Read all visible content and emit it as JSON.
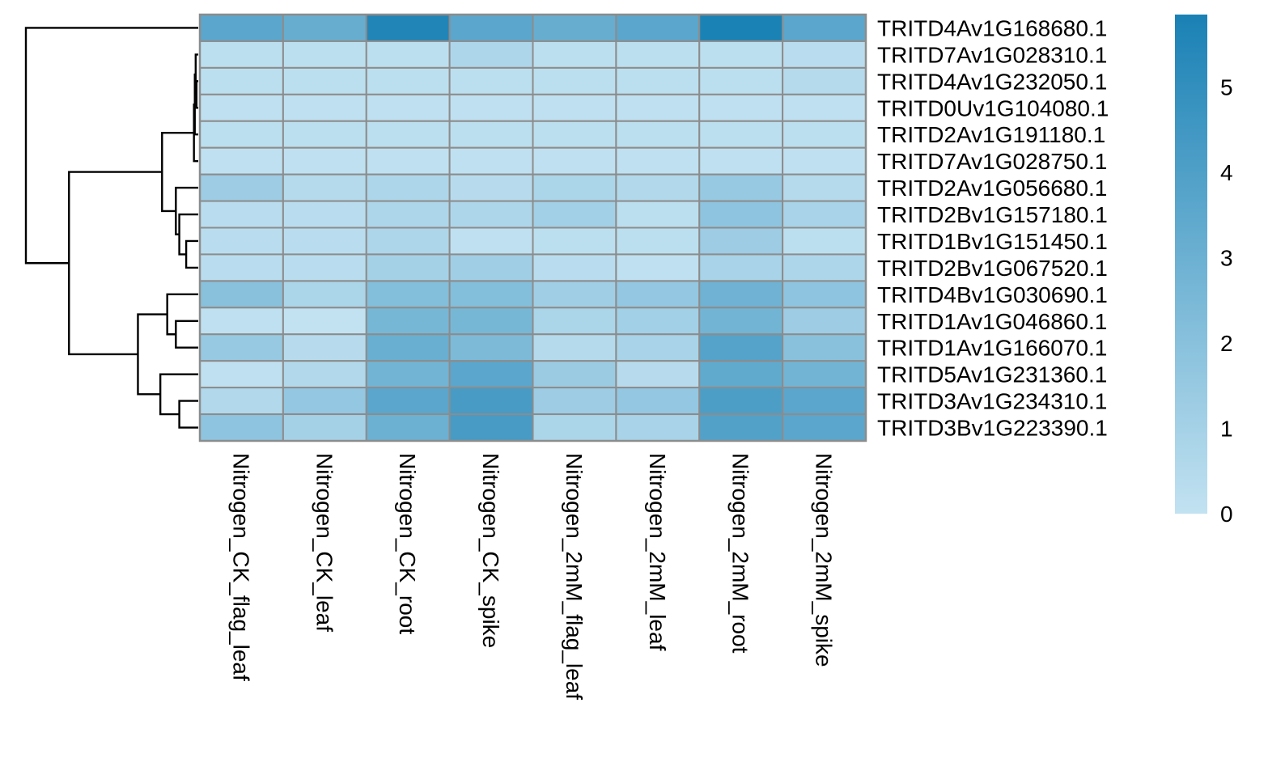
{
  "chart_data": {
    "type": "heatmap",
    "title": "",
    "columns": [
      "Nitrogen_CK_flag_leaf",
      "Nitrogen_CK_leaf",
      "Nitrogen_CK_root",
      "Nitrogen_CK_spike",
      "Nitrogen_2mM_flag_leaf",
      "Nitrogen_2mM_leaf",
      "Nitrogen_2mM_root",
      "Nitrogen_2mM_spike"
    ],
    "rows": [
      "TRITD4Av1G168680.1",
      "TRITD7Av1G028310.1",
      "TRITD4Av1G232050.1",
      "TRITD0Uv1G104080.1",
      "TRITD2Av1G191180.1",
      "TRITD7Av1G028750.1",
      "TRITD2Av1G056680.1",
      "TRITD2Bv1G157180.1",
      "TRITD1Bv1G151450.1",
      "TRITD2Bv1G067520.1",
      "TRITD4Bv1G030690.1",
      "TRITD1Av1G046860.1",
      "TRITD1Av1G166070.1",
      "TRITD5Av1G231360.1",
      "TRITD3Av1G234310.1",
      "TRITD3Bv1G223390.1"
    ],
    "values": [
      [
        3.6,
        3.2,
        5.6,
        3.6,
        3.2,
        3.6,
        5.8,
        3.6
      ],
      [
        0.2,
        0.2,
        0.2,
        0.7,
        0.2,
        0.2,
        0.2,
        0.3
      ],
      [
        0.2,
        0.2,
        0.2,
        0.2,
        0.2,
        0.2,
        0.2,
        0.5
      ],
      [
        0.1,
        0.1,
        0.1,
        0.1,
        0.1,
        0.1,
        0.1,
        0.1
      ],
      [
        0.2,
        0.2,
        0.2,
        0.2,
        0.2,
        0.2,
        0.2,
        0.2
      ],
      [
        0.1,
        0.1,
        0.1,
        0.1,
        0.1,
        0.1,
        0.1,
        0.1
      ],
      [
        1.3,
        0.5,
        0.7,
        0.4,
        0.8,
        0.6,
        1.5,
        0.5
      ],
      [
        0.3,
        0.3,
        0.7,
        0.7,
        1.1,
        0.2,
        1.8,
        0.9
      ],
      [
        0.3,
        0.3,
        0.7,
        0.1,
        0.2,
        0.2,
        1.3,
        0.2
      ],
      [
        0.3,
        0.3,
        1.0,
        1.2,
        0.3,
        0.1,
        0.9,
        0.7
      ],
      [
        2.0,
        0.8,
        2.2,
        2.2,
        1.2,
        1.6,
        2.9,
        1.8
      ],
      [
        0.1,
        0.0,
        2.6,
        2.6,
        0.8,
        1.1,
        2.8,
        1.3
      ],
      [
        1.5,
        0.4,
        3.1,
        2.4,
        0.5,
        0.9,
        3.8,
        2.0
      ],
      [
        0.1,
        0.6,
        2.8,
        3.6,
        1.4,
        0.4,
        3.4,
        2.8
      ],
      [
        0.6,
        1.6,
        3.6,
        4.3,
        1.3,
        1.6,
        4.1,
        3.6
      ],
      [
        1.8,
        1.0,
        3.0,
        4.3,
        0.8,
        0.9,
        3.9,
        3.6
      ]
    ],
    "colorbar": {
      "ticks": [
        "0",
        "1",
        "2",
        "3",
        "4",
        "5"
      ],
      "min": 0,
      "max": 5.85,
      "colors": [
        "#c2e2f1",
        "#1a81b5"
      ]
    },
    "dendrogram": {
      "leaf_order": [
        0,
        1,
        2,
        3,
        4,
        5,
        6,
        7,
        8,
        9,
        10,
        11,
        12,
        13,
        14,
        15
      ],
      "merges": [
        [
          2,
          3,
          0.01
        ],
        [
          1,
          16,
          0.015
        ],
        [
          17,
          4,
          0.02
        ],
        [
          18,
          5,
          0.025
        ],
        [
          8,
          9,
          0.07
        ],
        [
          7,
          20,
          0.11
        ],
        [
          6,
          21,
          0.13
        ],
        [
          11,
          12,
          0.13
        ],
        [
          14,
          15,
          0.11
        ],
        [
          10,
          23,
          0.18
        ],
        [
          13,
          24,
          0.22
        ],
        [
          25,
          26,
          0.35
        ],
        [
          19,
          22,
          0.21
        ],
        [
          28,
          27,
          0.75
        ],
        [
          0,
          29,
          1.0
        ]
      ]
    }
  }
}
